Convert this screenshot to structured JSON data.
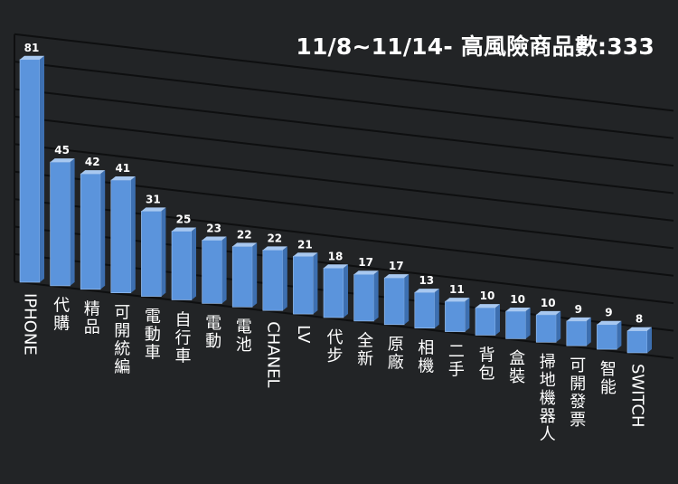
{
  "chart_data": {
    "type": "bar",
    "title": "11/8~11/14- 高風險商品數:333",
    "categories": [
      "IPHONE",
      "代購",
      "精品",
      "可開統編",
      "電動車",
      "自行車",
      "電動",
      "電池",
      "CHANEL",
      "LV",
      "代步",
      "全新",
      "原廠",
      "相機",
      "二手",
      "背包",
      "盒裝",
      "掃地機器人",
      "可開發票",
      "智能",
      "SWITCH"
    ],
    "values": [
      81,
      45,
      42,
      41,
      31,
      25,
      23,
      22,
      22,
      21,
      18,
      17,
      17,
      13,
      11,
      10,
      10,
      10,
      9,
      9,
      8
    ],
    "ylim": [
      0,
      90
    ],
    "grid": true,
    "legend": "none",
    "colors": {
      "background": "#222426",
      "bar_front": "#5b94dc",
      "bar_top": "#a8c8f0",
      "bar_side": "#3d6fb0",
      "grid": "#0e0f10",
      "text": "#ffffff"
    }
  }
}
